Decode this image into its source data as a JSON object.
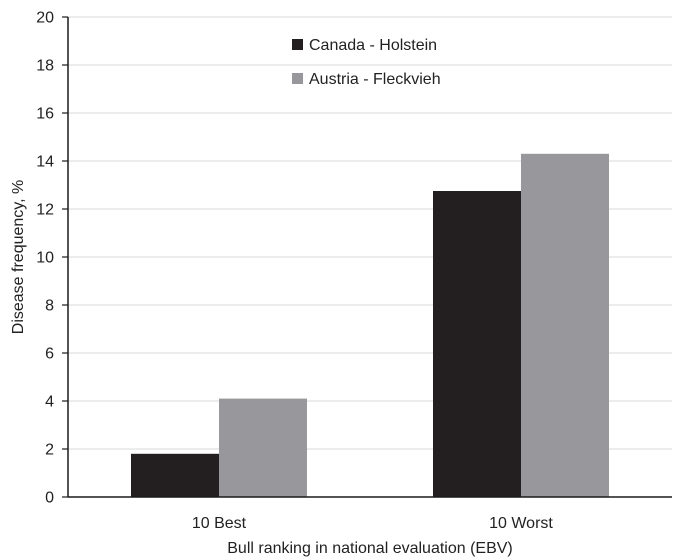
{
  "chart_data": {
    "type": "bar",
    "categories": [
      "10 Best",
      "10 Worst"
    ],
    "series": [
      {
        "name": "Canada - Holstein",
        "values": [
          1.8,
          12.75
        ],
        "color": "#231f20"
      },
      {
        "name": "Austria - Fleckvieh",
        "values": [
          4.1,
          14.3
        ],
        "color": "#98989c"
      }
    ],
    "xlabel": "Bull ranking in national evaluation (EBV)",
    "ylabel": "Disease frequency, %",
    "ylim": [
      0,
      20
    ],
    "yticks": [
      0,
      2,
      4,
      6,
      8,
      10,
      12,
      14,
      16,
      18,
      20
    ],
    "grid": true,
    "legend_position": "top-center"
  }
}
